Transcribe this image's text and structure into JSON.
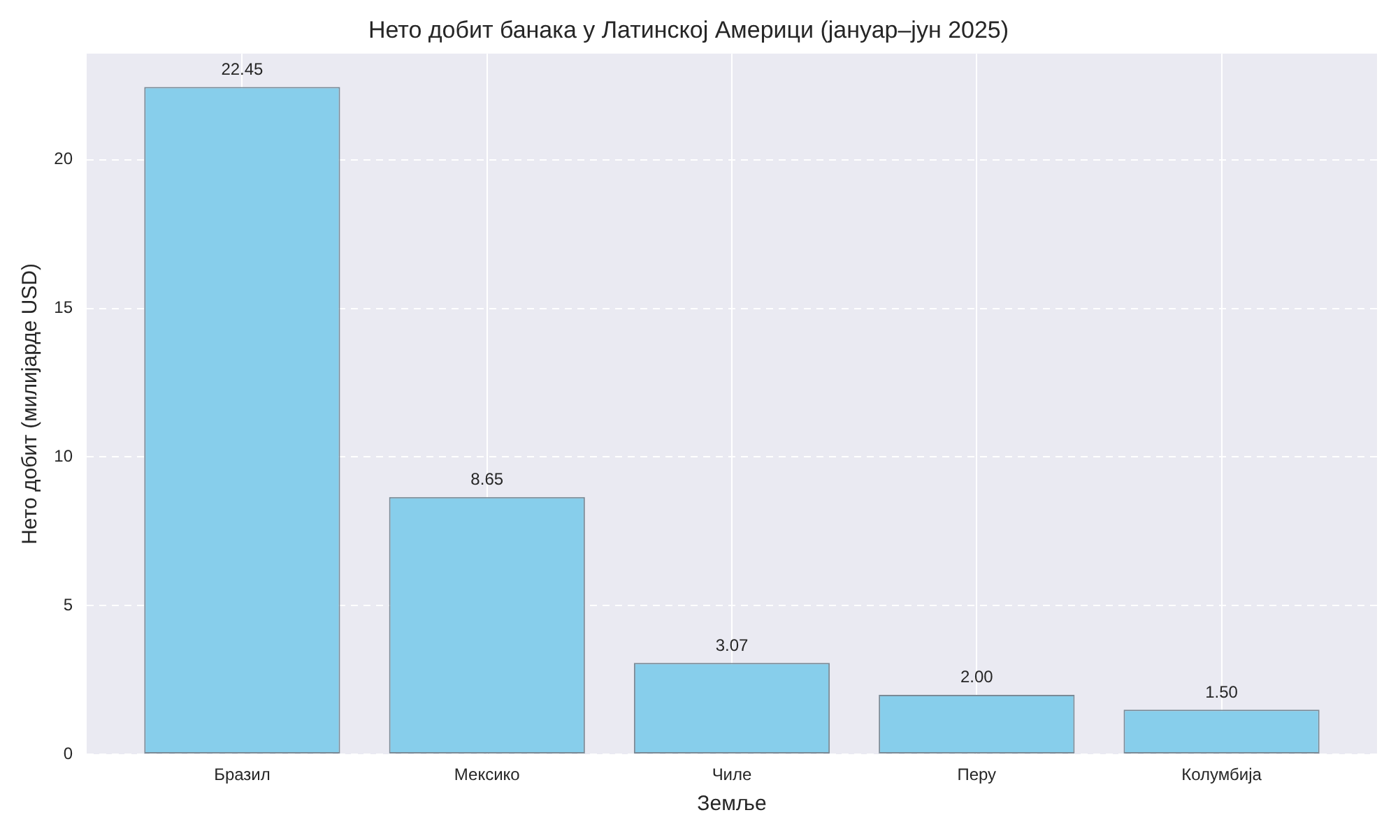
{
  "chart_data": {
    "type": "bar",
    "title": "Нето добит банака у Латинској Америци (јануар–јун 2025)",
    "xlabel": "Земље",
    "ylabel": "Нето добит (милијарде USD)",
    "categories": [
      "Бразил",
      "Мексико",
      "Чиле",
      "Перу",
      "Колумбија"
    ],
    "values": [
      22.45,
      8.65,
      3.07,
      2.0,
      1.5
    ],
    "value_labels": [
      "22.45",
      "8.65",
      "3.07",
      "2.00",
      "1.50"
    ],
    "color": "#87ceeb",
    "ylim": [
      0,
      23.57
    ],
    "yticks": [
      0,
      5,
      10,
      15,
      20
    ],
    "grid": true
  }
}
